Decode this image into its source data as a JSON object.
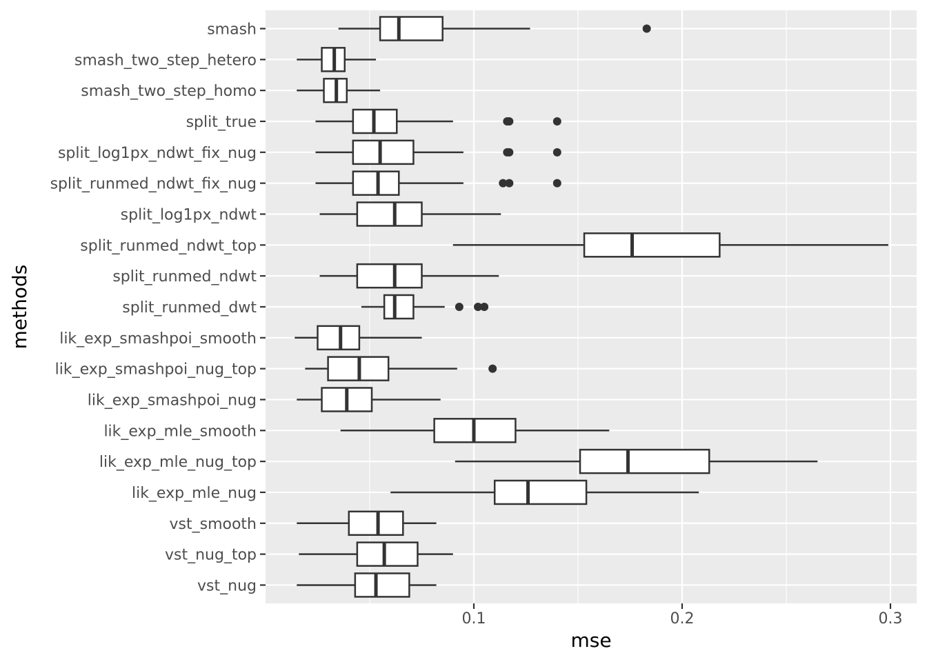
{
  "chart_data": {
    "type": "boxplot",
    "orientation": "horizontal",
    "xlabel": "mse",
    "ylabel": "methods",
    "xlim": [
      0.0,
      0.3125
    ],
    "x_ticks": [
      0.1,
      0.2,
      0.3
    ],
    "x_tick_labels": [
      "0.1",
      "0.2",
      "0.3"
    ],
    "grid": true,
    "colors": {
      "panel": "#ebebeb",
      "grid": "#ffffff",
      "box_stroke": "#333333",
      "box_fill": "#ffffff",
      "outlier": "#333333"
    },
    "categories": [
      "smash",
      "smash_two_step_hetero",
      "smash_two_step_homo",
      "split_true",
      "split_log1px_ndwt_fix_nug",
      "split_runmed_ndwt_fix_nug",
      "split_log1px_ndwt",
      "split_runmed_ndwt_top",
      "split_runmed_ndwt",
      "split_runmed_dwt",
      "lik_exp_smashpoi_smooth",
      "lik_exp_smashpoi_nug_top",
      "lik_exp_smashpoi_nug",
      "lik_exp_mle_smooth",
      "lik_exp_mle_nug_top",
      "lik_exp_mle_nug",
      "vst_smooth",
      "vst_nug_top",
      "vst_nug"
    ],
    "boxes": [
      {
        "min": 0.035,
        "q1": 0.055,
        "median": 0.064,
        "q3": 0.085,
        "max": 0.127,
        "outliers": [
          0.183
        ]
      },
      {
        "min": 0.015,
        "q1": 0.027,
        "median": 0.033,
        "q3": 0.038,
        "max": 0.053,
        "outliers": []
      },
      {
        "min": 0.015,
        "q1": 0.028,
        "median": 0.034,
        "q3": 0.039,
        "max": 0.055,
        "outliers": []
      },
      {
        "min": 0.024,
        "q1": 0.042,
        "median": 0.052,
        "q3": 0.063,
        "max": 0.09,
        "outliers": [
          0.116,
          0.117,
          0.14
        ]
      },
      {
        "min": 0.024,
        "q1": 0.042,
        "median": 0.055,
        "q3": 0.071,
        "max": 0.095,
        "outliers": [
          0.116,
          0.117,
          0.14
        ]
      },
      {
        "min": 0.024,
        "q1": 0.042,
        "median": 0.054,
        "q3": 0.064,
        "max": 0.095,
        "outliers": [
          0.114,
          0.117,
          0.14
        ]
      },
      {
        "min": 0.026,
        "q1": 0.044,
        "median": 0.062,
        "q3": 0.075,
        "max": 0.113,
        "outliers": []
      },
      {
        "min": 0.09,
        "q1": 0.153,
        "median": 0.176,
        "q3": 0.218,
        "max": 0.299,
        "outliers": []
      },
      {
        "min": 0.026,
        "q1": 0.044,
        "median": 0.062,
        "q3": 0.075,
        "max": 0.112,
        "outliers": []
      },
      {
        "min": 0.046,
        "q1": 0.057,
        "median": 0.062,
        "q3": 0.071,
        "max": 0.086,
        "outliers": [
          0.093,
          0.102,
          0.105
        ]
      },
      {
        "min": 0.014,
        "q1": 0.025,
        "median": 0.036,
        "q3": 0.045,
        "max": 0.075,
        "outliers": []
      },
      {
        "min": 0.019,
        "q1": 0.03,
        "median": 0.045,
        "q3": 0.059,
        "max": 0.092,
        "outliers": [
          0.109
        ]
      },
      {
        "min": 0.015,
        "q1": 0.027,
        "median": 0.039,
        "q3": 0.051,
        "max": 0.084,
        "outliers": []
      },
      {
        "min": 0.036,
        "q1": 0.081,
        "median": 0.1,
        "q3": 0.12,
        "max": 0.165,
        "outliers": []
      },
      {
        "min": 0.091,
        "q1": 0.151,
        "median": 0.174,
        "q3": 0.213,
        "max": 0.265,
        "outliers": []
      },
      {
        "min": 0.06,
        "q1": 0.11,
        "median": 0.126,
        "q3": 0.154,
        "max": 0.208,
        "outliers": []
      },
      {
        "min": 0.015,
        "q1": 0.04,
        "median": 0.054,
        "q3": 0.066,
        "max": 0.082,
        "outliers": []
      },
      {
        "min": 0.016,
        "q1": 0.044,
        "median": 0.057,
        "q3": 0.073,
        "max": 0.09,
        "outliers": []
      },
      {
        "min": 0.015,
        "q1": 0.043,
        "median": 0.053,
        "q3": 0.069,
        "max": 0.082,
        "outliers": []
      }
    ]
  }
}
